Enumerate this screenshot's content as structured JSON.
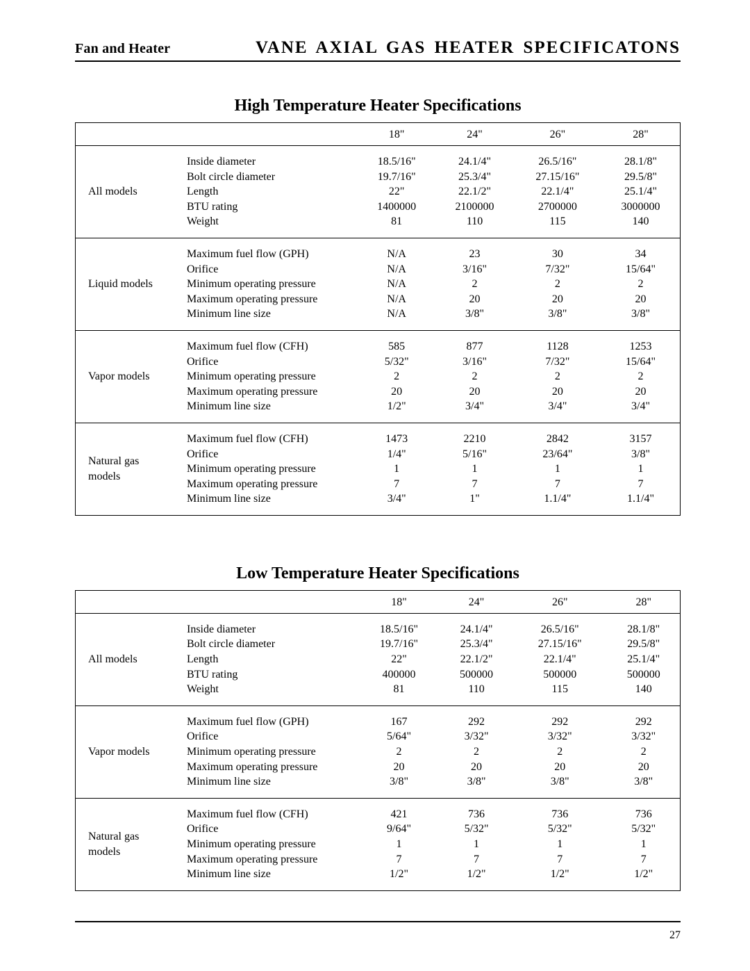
{
  "header": {
    "left": "Fan and Heater",
    "right": "VANE AXIAL GAS HEATER SPECIFICATONS"
  },
  "page_number": "27",
  "tables": [
    {
      "title": "High Temperature Heater Specifications",
      "columns": [
        "18\"",
        "24\"",
        "26\"",
        "28\""
      ],
      "groups": [
        {
          "category": "All models",
          "params": [
            "Inside diameter",
            "Bolt circle diameter",
            "Length",
            "BTU rating",
            "Weight"
          ],
          "values": [
            [
              "18.5/16\"",
              "19.7/16\"",
              "22\"",
              "1400000",
              "81"
            ],
            [
              "24.1/4\"",
              "25.3/4\"",
              "22.1/2\"",
              "2100000",
              "110"
            ],
            [
              "26.5/16\"",
              "27.15/16\"",
              "22.1/4\"",
              "2700000",
              "115"
            ],
            [
              "28.1/8\"",
              "29.5/8\"",
              "25.1/4\"",
              "3000000",
              "140"
            ]
          ]
        },
        {
          "category": "Liquid models",
          "params": [
            "Maximum fuel flow (GPH)",
            "Orifice",
            "Minimum operating pressure",
            "Maximum operating pressure",
            "Minimum line size"
          ],
          "values": [
            [
              "N/A",
              "N/A",
              "N/A",
              "N/A",
              "N/A"
            ],
            [
              "23",
              "3/16\"",
              "2",
              "20",
              "3/8\""
            ],
            [
              "30",
              "7/32\"",
              "2",
              "20",
              "3/8\""
            ],
            [
              "34",
              "15/64\"",
              "2",
              "20",
              "3/8\""
            ]
          ]
        },
        {
          "category": "Vapor models",
          "params": [
            "Maximum fuel flow (CFH)",
            "Orifice",
            "Minimum operating pressure",
            "Maximum operating pressure",
            "Minimum line size"
          ],
          "values": [
            [
              "585",
              "5/32\"",
              "2",
              "20",
              "1/2\""
            ],
            [
              "877",
              "3/16\"",
              "2",
              "20",
              "3/4\""
            ],
            [
              "1128",
              "7/32\"",
              "2",
              "20",
              "3/4\""
            ],
            [
              "1253",
              "15/64\"",
              "2",
              "20",
              "3/4\""
            ]
          ]
        },
        {
          "category": "Natural gas models",
          "params": [
            "Maximum fuel flow (CFH)",
            "Orifice",
            "Minimum operating pressure",
            "Maximum operating pressure",
            "Minimum line size"
          ],
          "values": [
            [
              "1473",
              "1/4\"",
              "1",
              "7",
              "3/4\""
            ],
            [
              "2210",
              "5/16\"",
              "1",
              "7",
              "1\""
            ],
            [
              "2842",
              "23/64\"",
              "1",
              "7",
              "1.1/4\""
            ],
            [
              "3157",
              "3/8\"",
              "1",
              "7",
              "1.1/4\""
            ]
          ]
        }
      ]
    },
    {
      "title": "Low Temperature Heater Specifications",
      "columns": [
        "18\"",
        "24\"",
        "26\"",
        "28\""
      ],
      "groups": [
        {
          "category": "All models",
          "params": [
            "Inside diameter",
            "Bolt circle diameter",
            "Length",
            "BTU rating",
            "Weight"
          ],
          "values": [
            [
              "18.5/16\"",
              "19.7/16\"",
              "22\"",
              "400000",
              "81"
            ],
            [
              "24.1/4\"",
              "25.3/4\"",
              "22.1/2\"",
              "500000",
              "110"
            ],
            [
              "26.5/16\"",
              "27.15/16\"",
              "22.1/4\"",
              "500000",
              "115"
            ],
            [
              "28.1/8\"",
              "29.5/8\"",
              "25.1/4\"",
              "500000",
              "140"
            ]
          ]
        },
        {
          "category": "Vapor models",
          "params": [
            "Maximum fuel flow (GPH)",
            "Orifice",
            "Minimum operating pressure",
            "Maximum operating pressure",
            "Minimum line size"
          ],
          "values": [
            [
              "167",
              "5/64\"",
              "2",
              "20",
              "3/8\""
            ],
            [
              "292",
              "3/32\"",
              "2",
              "20",
              "3/8\""
            ],
            [
              "292",
              "3/32\"",
              "2",
              "20",
              "3/8\""
            ],
            [
              "292",
              "3/32\"",
              "2",
              "20",
              "3/8\""
            ]
          ]
        },
        {
          "category": "Natural gas models",
          "params": [
            "Maximum fuel flow (CFH)",
            "Orifice",
            "Minimum operating pressure",
            "Maximum operating pressure",
            "Minimum line size"
          ],
          "values": [
            [
              "421",
              "9/64\"",
              "1",
              "7",
              "1/2\""
            ],
            [
              "736",
              "5/32\"",
              "1",
              "7",
              "1/2\""
            ],
            [
              "736",
              "5/32\"",
              "1",
              "7",
              "1/2\""
            ],
            [
              "736",
              "5/32\"",
              "1",
              "7",
              "1/2\""
            ]
          ]
        }
      ]
    }
  ]
}
